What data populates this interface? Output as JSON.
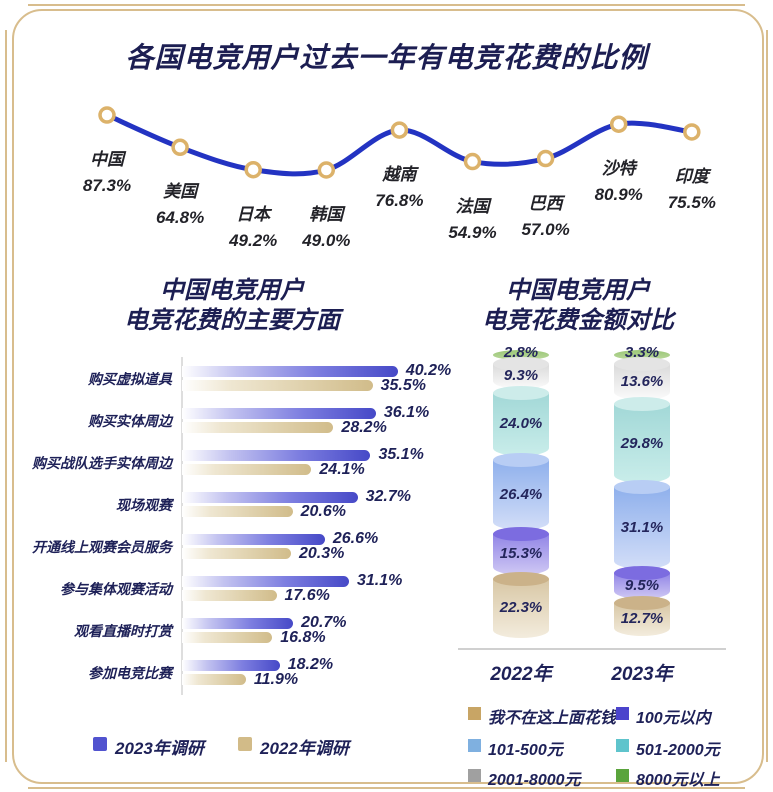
{
  "page": {
    "frame_color": "#d8bd8d",
    "background": "#ffffff",
    "title_color": "#1c1e52"
  },
  "chart_data": [
    {
      "type": "line",
      "title": "各国电竞用户过去一年有电竞花费的比例",
      "categories": [
        "中国",
        "美国",
        "日本",
        "韩国",
        "越南",
        "法国",
        "巴西",
        "沙特",
        "印度"
      ],
      "values": [
        87.3,
        64.8,
        49.2,
        49.0,
        76.8,
        54.9,
        57.0,
        80.9,
        75.5
      ],
      "unit": "%",
      "line_color": "#2333c2",
      "marker_fill": "#ffffff",
      "marker_stroke": "#dcb26a",
      "grid": false,
      "ylim": [
        45,
        92
      ]
    },
    {
      "type": "bar",
      "title_line1": "中国电竞用户",
      "title_line2": "电竞花费的主要方面",
      "categories": [
        "购买虚拟道具",
        "购买实体周边",
        "购买战队选手实体周边",
        "现场观赛",
        "开通线上观赛会员服务",
        "参与集体观赛活动",
        "观看直播时打赏",
        "参加电竞比赛"
      ],
      "series": [
        {
          "name": "2023年调研",
          "color": "#5153cf",
          "gradient": [
            "#ffffff",
            "#c3c3f0",
            "#7d7ee0",
            "#4649c7"
          ],
          "values": [
            40.2,
            36.1,
            35.1,
            32.7,
            26.6,
            31.1,
            20.7,
            18.2
          ]
        },
        {
          "name": "2022年调研",
          "color": "#d2bb88",
          "gradient": [
            "#ffffff",
            "#efe7d2",
            "#e0d2ae",
            "#d1bc8a"
          ],
          "values": [
            35.5,
            28.2,
            24.1,
            20.6,
            20.3,
            17.6,
            16.8,
            11.9
          ]
        }
      ],
      "unit": "%",
      "xlim": [
        0,
        45
      ],
      "legend_position": "bottom"
    },
    {
      "type": "stacked-cylinder",
      "title_line1": "中国电竞用户",
      "title_line2": "电竞花费金额对比",
      "columns": [
        {
          "label": "2022年",
          "segments_top_to_bottom": [
            {
              "category": "8000元以上",
              "value": 2.8,
              "shape": "band",
              "body_top": "#9cc778",
              "body_bottom": "#b9d89b",
              "lid": "#9cc778"
            },
            {
              "category": "2001-8000元",
              "value": 9.3,
              "shape": "cylinder",
              "body_top": "#dadada",
              "body_bottom": "#fbfbfb",
              "lid": "#e4e4e4"
            },
            {
              "category": "501-2000元",
              "value": 24.0,
              "shape": "cylinder",
              "body_top": "#a2d8d7",
              "body_bottom": "#c9edea",
              "lid": "#cdecea"
            },
            {
              "category": "101-500元",
              "value": 26.4,
              "shape": "cylinder",
              "body_top": "#8fb0ec",
              "body_bottom": "#d3def8",
              "lid": "#b8cdf4"
            },
            {
              "category": "100元以内",
              "value": 15.3,
              "shape": "cylinder",
              "body_top": "#9185e6",
              "body_bottom": "#d0c9f4",
              "lid": "#7c6ce0"
            },
            {
              "category": "我不在这上面花钱",
              "value": 22.3,
              "shape": "cylinder",
              "body_top": "#d8c7a5",
              "body_bottom": "#f3ecdd",
              "lid": "#cbb289"
            }
          ]
        },
        {
          "label": "2023年",
          "segments_top_to_bottom": [
            {
              "category": "8000元以上",
              "value": 3.3,
              "shape": "band",
              "body_top": "#9cc778",
              "body_bottom": "#b9d89b",
              "lid": "#9cc778"
            },
            {
              "category": "2001-8000元",
              "value": 13.6,
              "shape": "cylinder",
              "body_top": "#dadada",
              "body_bottom": "#fbfbfb",
              "lid": "#e4e4e4"
            },
            {
              "category": "501-2000元",
              "value": 29.8,
              "shape": "cylinder",
              "body_top": "#a2d8d7",
              "body_bottom": "#c9edea",
              "lid": "#cdecea"
            },
            {
              "category": "101-500元",
              "value": 31.1,
              "shape": "cylinder",
              "body_top": "#8fb0ec",
              "body_bottom": "#d3def8",
              "lid": "#b8cdf4"
            },
            {
              "category": "100元以内",
              "value": 9.5,
              "shape": "cylinder",
              "body_top": "#9185e6",
              "body_bottom": "#d0c9f4",
              "lid": "#7c6ce0"
            },
            {
              "category": "我不在这上面花钱",
              "value": 12.7,
              "shape": "cylinder",
              "body_top": "#d8c7a5",
              "body_bottom": "#f3ecdd",
              "lid": "#cbb289"
            }
          ]
        }
      ],
      "legend": [
        {
          "label": "我不在这上面花钱",
          "color": "#c8a565"
        },
        {
          "label": "100元以内",
          "color": "#4b44cc"
        },
        {
          "label": "101-500元",
          "color": "#7fb0e0"
        },
        {
          "label": "501-2000元",
          "color": "#5fc4cc"
        },
        {
          "label": "2001-8000元",
          "color": "#a0a0a0"
        },
        {
          "label": "8000元以上",
          "color": "#5aa43c"
        }
      ],
      "unit": "%"
    }
  ]
}
